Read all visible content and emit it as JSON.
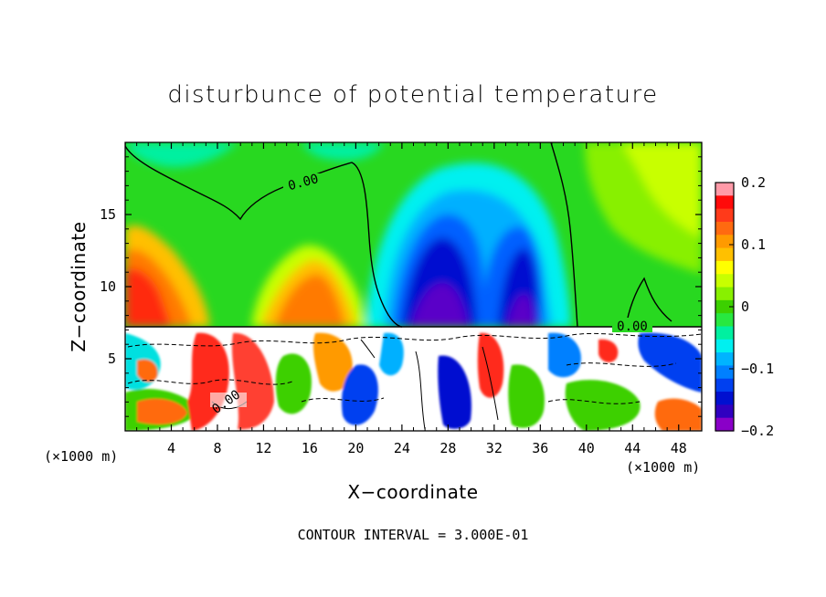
{
  "chart_data": {
    "type": "heatmap",
    "title": "disturbunce of potential temperature",
    "xlabel": "X−coordinate",
    "ylabel": "Z−coordinate",
    "x_unit_left": "(×1000 m)",
    "x_unit_right": "(×1000 m)",
    "xlim": [
      0,
      50
    ],
    "ylim": [
      0,
      20
    ],
    "x_ticks": [
      4,
      8,
      12,
      16,
      20,
      24,
      28,
      32,
      36,
      40,
      44,
      48
    ],
    "x_tick_labels": [
      "4",
      "8",
      "12",
      "16",
      "20",
      "24",
      "28",
      "32",
      "36",
      "40",
      "44",
      "48"
    ],
    "y_ticks": [
      5,
      10,
      15
    ],
    "y_tick_labels": [
      "5",
      "10",
      "15"
    ],
    "colorbar": {
      "min": -0.2,
      "max": 0.2,
      "ticks": [
        0.2,
        0.1,
        0,
        -0.1,
        -0.2
      ],
      "tick_labels": [
        "0.2",
        "0.1",
        "0",
        "−0.1",
        "−0.2"
      ],
      "colors": [
        "#ff9aa8",
        "#ff0a0a",
        "#ff3a1a",
        "#ff6a10",
        "#ff9a00",
        "#ffc000",
        "#ffff00",
        "#c8ff00",
        "#88f000",
        "#3cd000",
        "#28e840",
        "#00f0a0",
        "#00f0f0",
        "#00b4ff",
        "#0080ff",
        "#0040f0",
        "#0010d0",
        "#3000c0",
        "#8a00c8"
      ]
    },
    "contour_labels": [
      {
        "text": "0.00"
      },
      {
        "text": "0.00"
      },
      {
        "text": "0.00"
      }
    ],
    "contour_interval_text": "CONTOUR INTERVAL = 3.000E-01"
  },
  "colors": {
    "positive": "#ff2a1a",
    "negative": "#1010c8",
    "zero": "#3cd000"
  }
}
